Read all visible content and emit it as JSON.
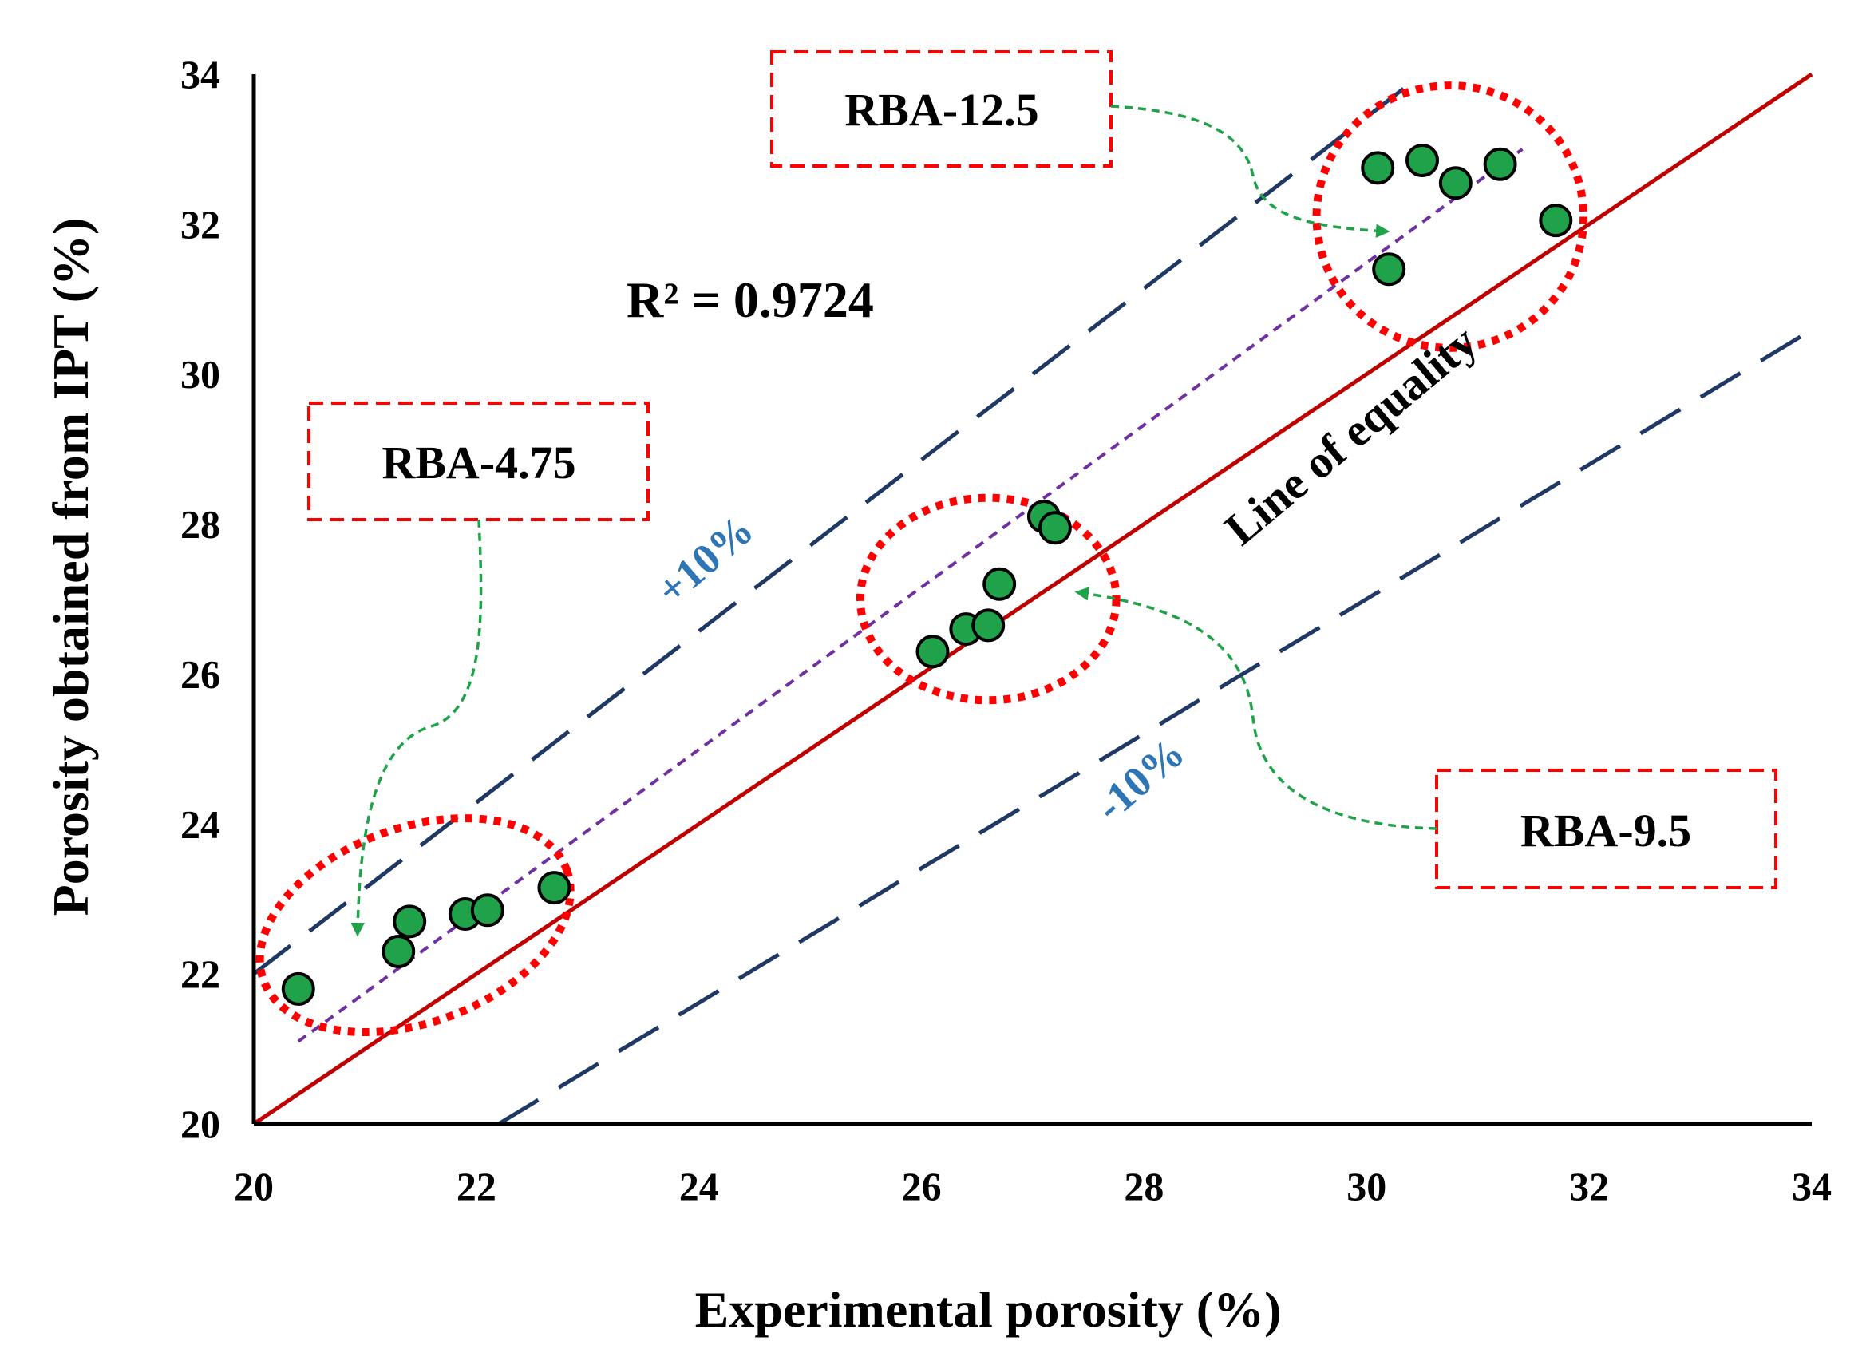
{
  "chart_data": {
    "type": "scatter",
    "xlabel": "Experimental porosity (%)",
    "ylabel": "Porosity obtained from IPT (%)",
    "xlim": [
      20,
      34
    ],
    "ylim": [
      20,
      34
    ],
    "x_ticks": [
      20,
      22,
      24,
      26,
      28,
      30,
      32,
      34
    ],
    "y_ticks": [
      20,
      22,
      24,
      26,
      28,
      30,
      32,
      34
    ],
    "x_tick_labels": [
      "20",
      "22",
      "24",
      "26",
      "28",
      "30",
      "32",
      "34"
    ],
    "y_tick_labels": [
      "20",
      "22",
      "24",
      "26",
      "28",
      "30",
      "32",
      "34"
    ],
    "grid": false,
    "series": [
      {
        "marker_color": "#1FA24A",
        "points": [
          {
            "x": 20.4,
            "y": 21.8
          },
          {
            "x": 21.3,
            "y": 22.3
          },
          {
            "x": 21.4,
            "y": 22.7
          },
          {
            "x": 21.9,
            "y": 22.8
          },
          {
            "x": 22.1,
            "y": 22.85
          },
          {
            "x": 22.7,
            "y": 23.15
          },
          {
            "x": 26.1,
            "y": 26.3
          },
          {
            "x": 26.4,
            "y": 26.6
          },
          {
            "x": 26.6,
            "y": 26.65
          },
          {
            "x": 26.7,
            "y": 27.2
          },
          {
            "x": 27.1,
            "y": 28.1
          },
          {
            "x": 27.2,
            "y": 27.95
          },
          {
            "x": 30.1,
            "y": 32.75
          },
          {
            "x": 30.2,
            "y": 31.4
          },
          {
            "x": 30.5,
            "y": 32.85
          },
          {
            "x": 30.8,
            "y": 32.55
          },
          {
            "x": 31.2,
            "y": 32.8
          },
          {
            "x": 31.7,
            "y": 32.05
          }
        ]
      }
    ],
    "lines": [
      {
        "label": "Line of equality",
        "color": "#C00000",
        "style": "solid",
        "x": [
          20,
          34
        ],
        "y": [
          20,
          34
        ]
      },
      {
        "label": "+10%",
        "color": "#1F3864",
        "style": "dashed",
        "x": [
          20,
          30.5
        ],
        "y": [
          22,
          34
        ]
      },
      {
        "label": "-10%",
        "color": "#1F3864",
        "style": "dashed",
        "x": [
          22.2,
          33.9
        ],
        "y": [
          20,
          30.5
        ]
      },
      {
        "label": "",
        "color": "#7030A0",
        "style": "dotted",
        "x": [
          20.4,
          31.4
        ],
        "y": [
          21.1,
          33.0
        ]
      }
    ],
    "groups": [
      {
        "label": "RBA-4.75",
        "cx": 21.45,
        "cy": 22.65,
        "rx": 1.45,
        "ry": 1.3,
        "rotate": -20
      },
      {
        "label": "RBA-9.5",
        "cx": 26.6,
        "cy": 27.0,
        "rx": 1.15,
        "ry": 1.35,
        "rotate": 0
      },
      {
        "label": "RBA-12.5",
        "cx": 30.75,
        "cy": 32.1,
        "rx": 1.2,
        "ry": 1.75,
        "rotate": 0
      }
    ],
    "annotations": {
      "r_squared": "R² = 0.9724",
      "equality_label": "Line of equality",
      "plus_band": "+10%",
      "minus_band": "-10%"
    },
    "colors": {
      "marker_fill": "#1FA24A",
      "equality": "#C00000",
      "band": "#1F3864",
      "trend": "#7030A0",
      "ellipse": "#FF0000",
      "callout_border": "#FF0000",
      "arrow": "#1FA24A",
      "band_text": "#2E75B6"
    }
  }
}
